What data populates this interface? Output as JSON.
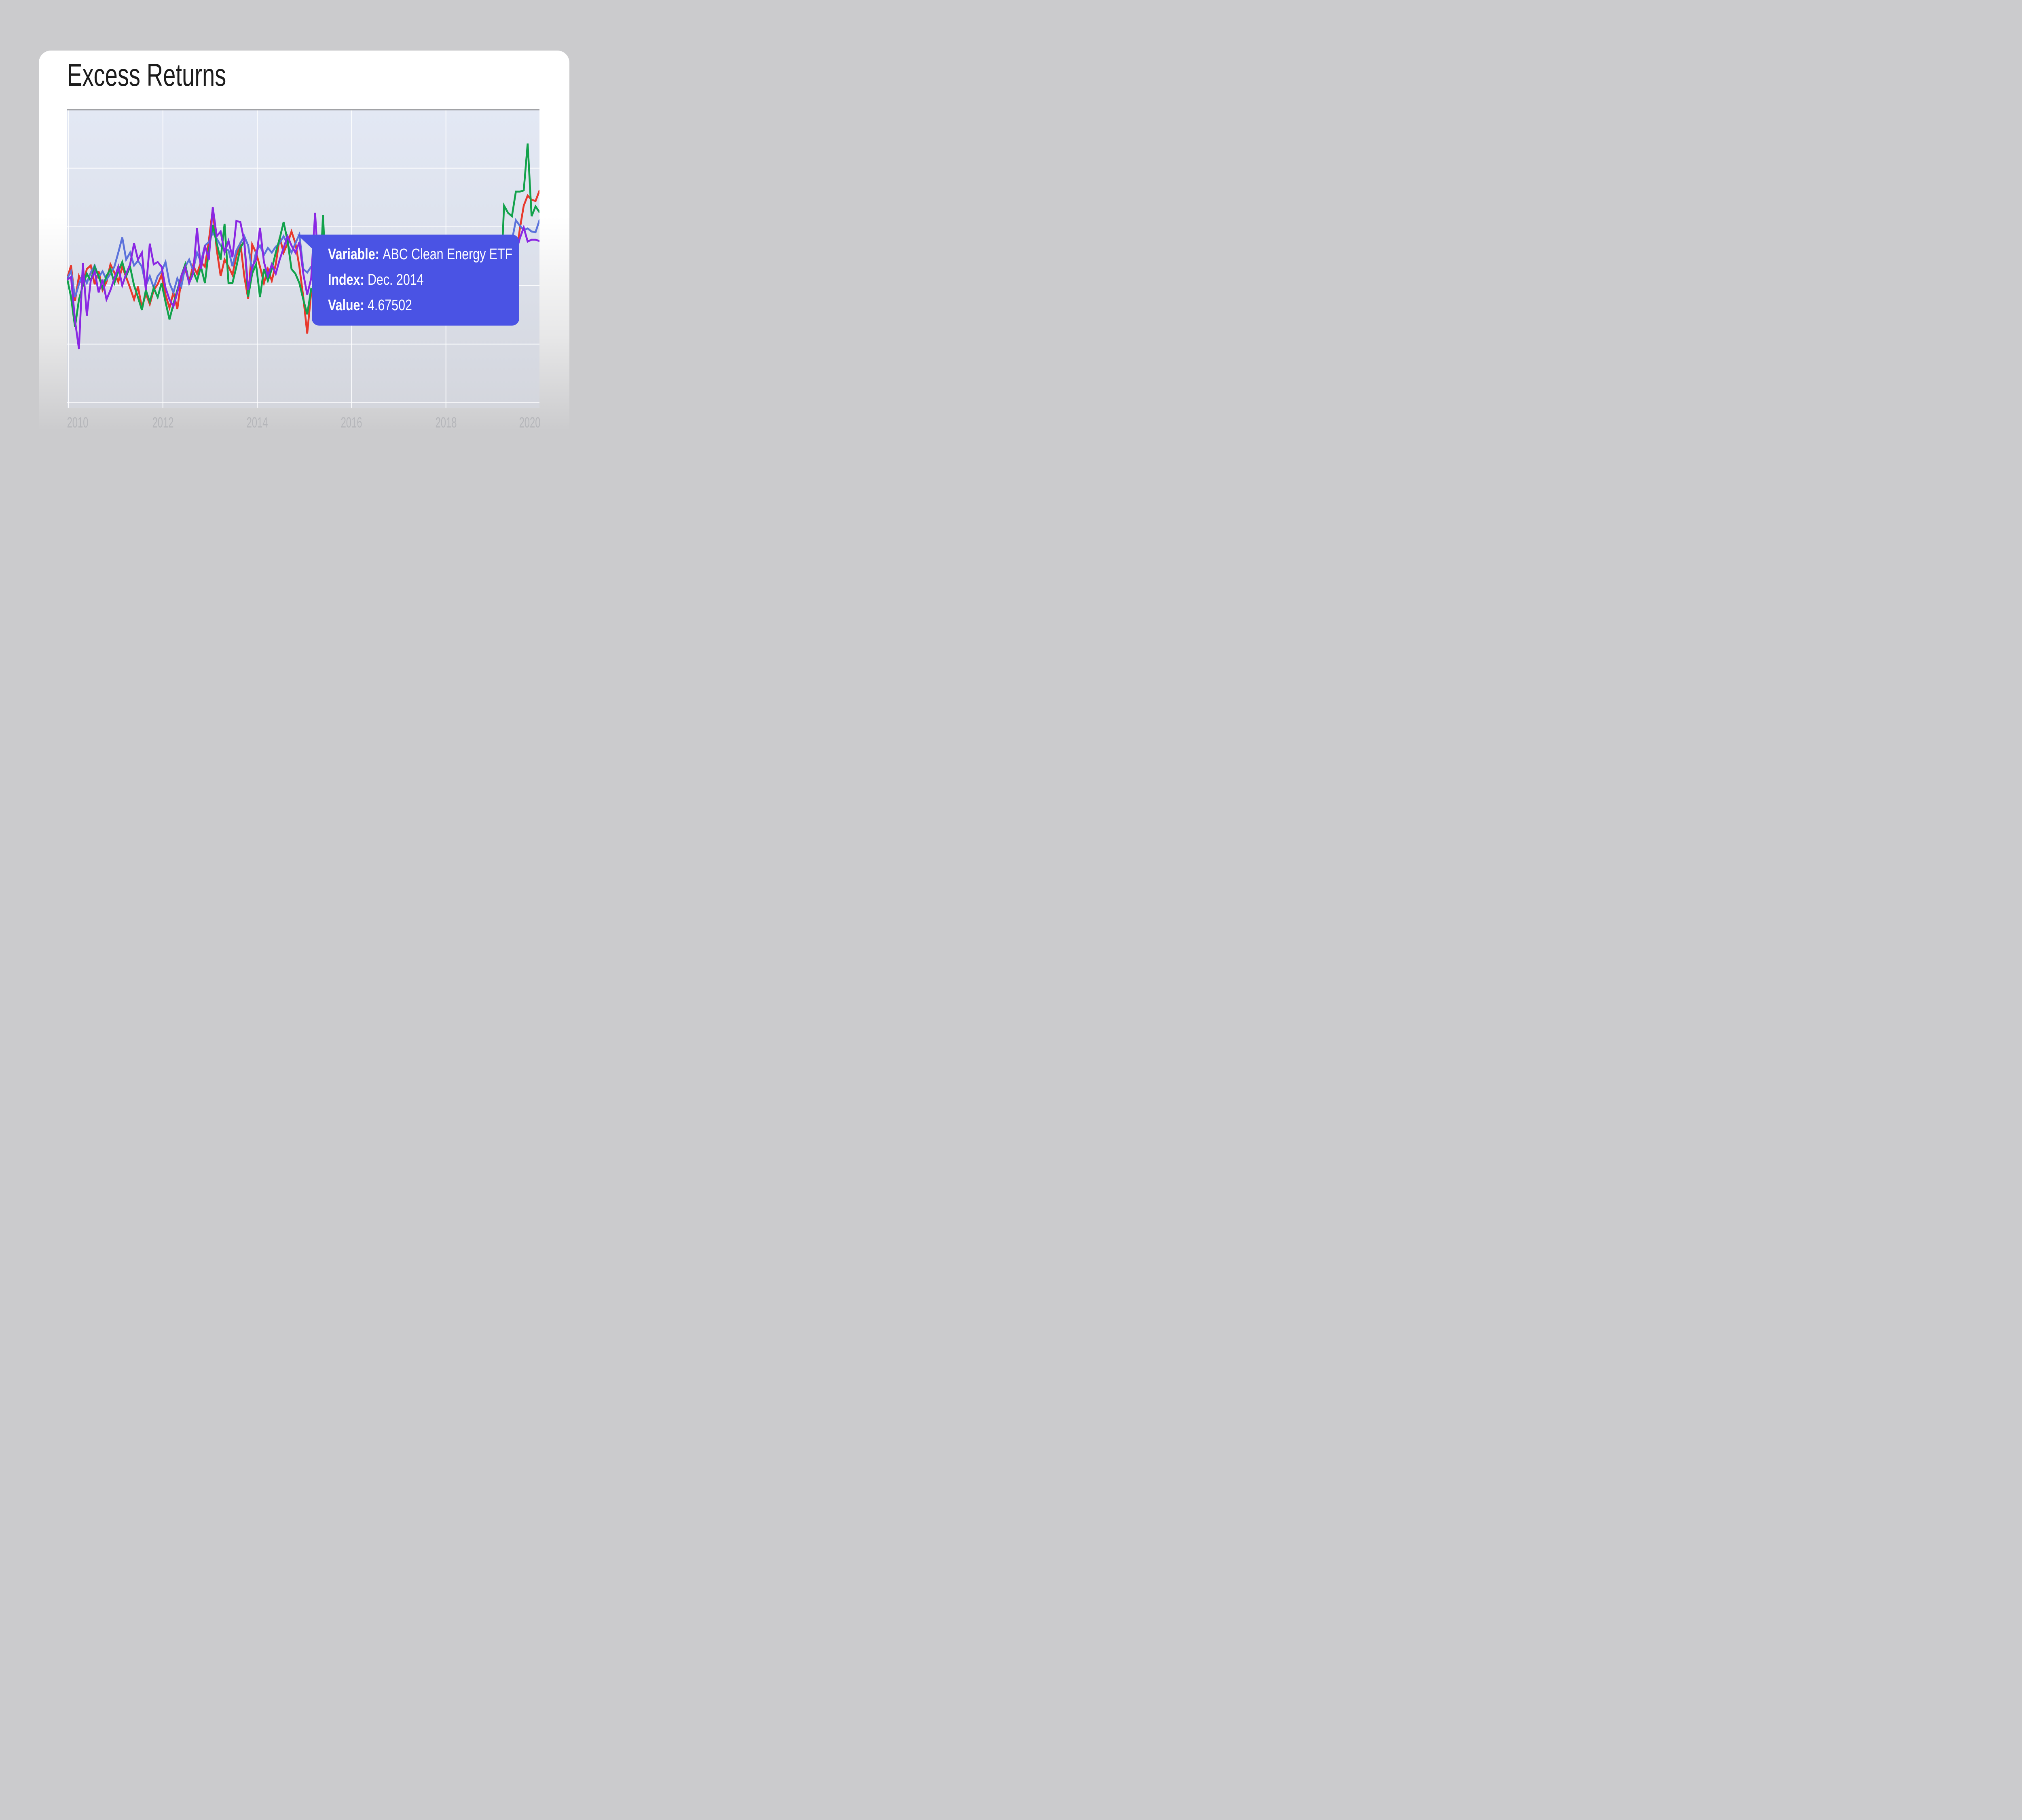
{
  "page": {
    "title": "Excess Returns",
    "background_color": "#cbcbcd",
    "card_color": "#ffffff"
  },
  "tooltip": {
    "background_color": "#4a53e4",
    "text_color": "#ffffff",
    "variable_label": "Variable:",
    "variable_value": "ABC Clean Energy ETF",
    "index_label": "Index:",
    "index_value": "Dec. 2014",
    "value_label": "Value:",
    "value_value": "4.67502"
  },
  "chart_data": {
    "type": "line",
    "title": "Excess Returns",
    "xlabel": "",
    "ylabel": "",
    "grid": true,
    "legend": "none",
    "x_tick_labels": [
      "2010",
      "2012",
      "2014",
      "2016",
      "2018",
      "2020"
    ],
    "x_start": "2010-01",
    "x_step_months": 1,
    "x_end": "2020-01",
    "ylim": [
      -2.71,
      9.96
    ],
    "y_gridline_values": [
      7.5,
      5.0,
      2.5,
      0.0,
      -2.5
    ],
    "y_tick_labels_shown": false,
    "note_nulls": "null = segment hidden behind tooltip overlay in screenshot",
    "hover_point": {
      "series": "ABC Clean Energy ETF",
      "index": "Dec. 2014",
      "value": 4.67502
    },
    "series": [
      {
        "name": "red-series",
        "color": "#e8382c",
        "values": [
          2.8,
          3.35,
          1.84,
          2.9,
          2.5,
          3.2,
          3.35,
          2.55,
          3.1,
          2.3,
          2.65,
          3.4,
          3.05,
          2.65,
          3.3,
          2.85,
          2.4,
          1.9,
          2.45,
          1.55,
          2.15,
          1.7,
          2.3,
          2.55,
          2.95,
          2.1,
          1.55,
          2.2,
          1.5,
          2.75,
          3.2,
          2.65,
          3.35,
          3.0,
          3.5,
          3.3,
          4.4,
          5.77,
          4.03,
          2.9,
          3.6,
          3.3,
          2.95,
          3.75,
          4.32,
          2.9,
          1.93,
          4.25,
          3.9,
          3.3,
          2.6,
          3.2,
          2.7,
          3.4,
          4.55,
          3.9,
          4.3,
          4.8,
          4.3,
          3.3,
          2.0,
          0.45,
          2.2,
          2.35,
          null,
          null,
          null,
          null,
          null,
          null,
          null,
          null,
          null,
          null,
          null,
          null,
          null,
          null,
          null,
          null,
          null,
          null,
          null,
          null,
          null,
          null,
          null,
          null,
          null,
          null,
          null,
          null,
          null,
          null,
          null,
          null,
          null,
          null,
          null,
          null,
          null,
          null,
          null,
          null,
          null,
          null,
          null,
          null,
          null,
          null,
          null,
          null,
          null,
          null,
          3.6,
          4.9,
          5.9,
          6.33,
          6.15,
          6.1,
          6.54
        ]
      },
      {
        "name": "blue-series",
        "color": "#5b72db",
        "values": [
          2.8,
          3.1,
          2.0,
          2.55,
          3.0,
          2.6,
          3.05,
          3.35,
          2.85,
          3.1,
          2.75,
          3.0,
          3.3,
          3.9,
          4.55,
          3.6,
          3.9,
          3.35,
          3.55,
          3.3,
          2.5,
          2.9,
          2.4,
          2.9,
          3.1,
          3.5,
          2.6,
          2.2,
          2.8,
          2.45,
          3.3,
          3.6,
          3.15,
          3.9,
          3.5,
          4.2,
          4.35,
          4.75,
          4.5,
          4.2,
          4.05,
          4.0,
          3.32,
          3.99,
          4.3,
          4.6,
          4.2,
          3.11,
          3.94,
          4.2,
          3.8,
          4.1,
          3.9,
          4.15,
          4.3,
          4.6,
          4.25,
          3.9,
          4.3,
          4.675,
          3.2,
          3.05,
          3.3,
          null,
          null,
          null,
          null,
          null,
          null,
          null,
          null,
          null,
          null,
          null,
          null,
          null,
          null,
          null,
          null,
          null,
          null,
          null,
          null,
          null,
          null,
          null,
          null,
          null,
          null,
          null,
          null,
          null,
          null,
          null,
          null,
          null,
          null,
          null,
          null,
          null,
          null,
          null,
          null,
          null,
          null,
          null,
          null,
          null,
          null,
          null,
          null,
          null,
          null,
          4.4,
          5.28,
          5.05,
          4.86,
          4.93,
          4.8,
          4.77,
          5.28
        ]
      },
      {
        "name": "green-series",
        "color": "#12a24b",
        "values": [
          2.8,
          2.0,
          0.73,
          1.9,
          2.5,
          3.0,
          2.7,
          3.3,
          2.9,
          2.4,
          2.9,
          3.2,
          2.6,
          3.1,
          3.5,
          2.9,
          3.3,
          2.5,
          2.0,
          1.45,
          2.3,
          1.8,
          2.4,
          2.0,
          2.6,
          1.8,
          1.05,
          1.7,
          2.3,
          2.9,
          3.4,
          2.6,
          3.1,
          2.7,
          3.3,
          2.6,
          4.0,
          5.08,
          4.3,
          3.6,
          5.13,
          2.59,
          2.6,
          3.3,
          4.1,
          4.39,
          2.02,
          3.0,
          3.4,
          2.0,
          3.2,
          2.7,
          3.2,
          3.9,
          4.5,
          5.2,
          4.4,
          3.2,
          3.0,
          2.6,
          1.9,
          1.27,
          2.35,
          2.3,
          1.8,
          5.5,
          2.0,
          null,
          null,
          null,
          null,
          null,
          null,
          null,
          null,
          null,
          null,
          null,
          null,
          null,
          null,
          null,
          null,
          null,
          null,
          null,
          null,
          null,
          null,
          null,
          null,
          null,
          null,
          null,
          null,
          null,
          null,
          null,
          null,
          null,
          null,
          null,
          null,
          null,
          null,
          null,
          null,
          null,
          null,
          null,
          2.0,
          5.9,
          5.6,
          5.45,
          6.5,
          6.5,
          6.55,
          8.55,
          5.45,
          5.87,
          5.62
        ]
      },
      {
        "name": "purple-series",
        "color": "#8a27e3",
        "values": [
          2.75,
          2.86,
          1.0,
          -0.21,
          3.45,
          1.21,
          2.7,
          3.1,
          2.2,
          2.75,
          1.9,
          2.3,
          2.8,
          3.3,
          2.5,
          3.0,
          3.4,
          4.3,
          3.6,
          3.9,
          2.3,
          4.28,
          3.4,
          3.5,
          3.3,
          2.4,
          1.9,
          1.6,
          2.2,
          2.9,
          3.3,
          2.6,
          3.0,
          4.94,
          3.2,
          4.2,
          3.6,
          5.84,
          4.6,
          4.8,
          3.9,
          4.4,
          3.7,
          5.25,
          5.2,
          4.4,
          2.31,
          3.3,
          3.6,
          4.96,
          3.5,
          2.9,
          3.4,
          3.0,
          3.6,
          4.1,
          4.6,
          4.2,
          3.9,
          4.35,
          3.0,
          2.11,
          2.8,
          5.6,
          2.8,
          null,
          null,
          null,
          null,
          null,
          null,
          null,
          null,
          null,
          null,
          null,
          null,
          null,
          null,
          null,
          null,
          null,
          null,
          null,
          null,
          null,
          null,
          null,
          null,
          null,
          null,
          null,
          null,
          null,
          null,
          null,
          null,
          null,
          null,
          null,
          null,
          null,
          null,
          null,
          null,
          null,
          null,
          null,
          null,
          null,
          null,
          null,
          null,
          null,
          3.9,
          4.5,
          4.97,
          4.37,
          4.45,
          4.45,
          4.39
        ]
      }
    ]
  }
}
